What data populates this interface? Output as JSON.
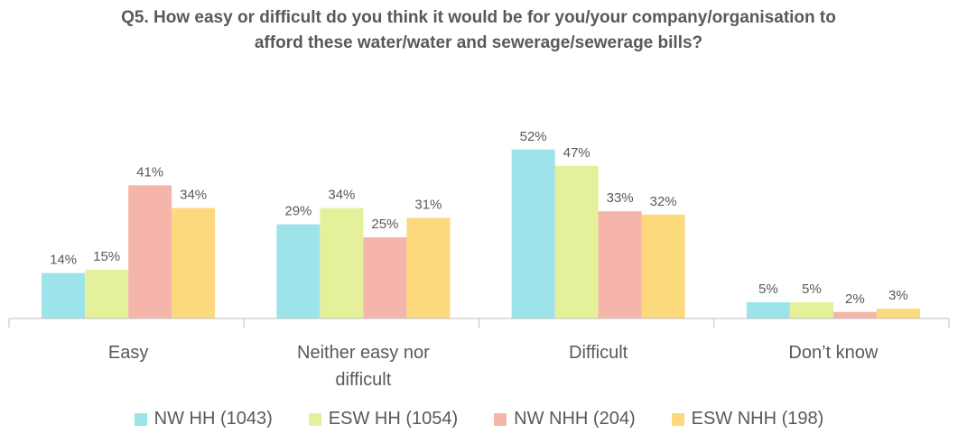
{
  "chart_data": {
    "type": "bar",
    "title": "Q5. How easy or difficult do you think it would be for you/your company/organisation to afford these water/water and sewerage/sewerage bills?",
    "categories": [
      "Easy",
      "Neither easy nor difficult",
      "Difficult",
      "Don’t know"
    ],
    "series": [
      {
        "name": "NW HH (1043)",
        "color": "#9de3ea",
        "values": [
          14,
          29,
          52,
          5
        ],
        "value_labels": [
          "14%",
          "29%",
          "52%",
          "5%"
        ]
      },
      {
        "name": "ESW HH (1054)",
        "color": "#e4f09a",
        "values": [
          15,
          34,
          47,
          5
        ],
        "value_labels": [
          "15%",
          "34%",
          "47%",
          "5%"
        ]
      },
      {
        "name": "NW NHH (204)",
        "color": "#f6b5aa",
        "values": [
          41,
          25,
          33,
          2
        ],
        "value_labels": [
          "41%",
          "25%",
          "33%",
          "2%"
        ]
      },
      {
        "name": "ESW NHH (198)",
        "color": "#fdd97e",
        "values": [
          34,
          31,
          32,
          3
        ],
        "value_labels": [
          "34%",
          "31%",
          "32%",
          "3%"
        ]
      }
    ],
    "ylim": [
      0,
      60
    ]
  }
}
